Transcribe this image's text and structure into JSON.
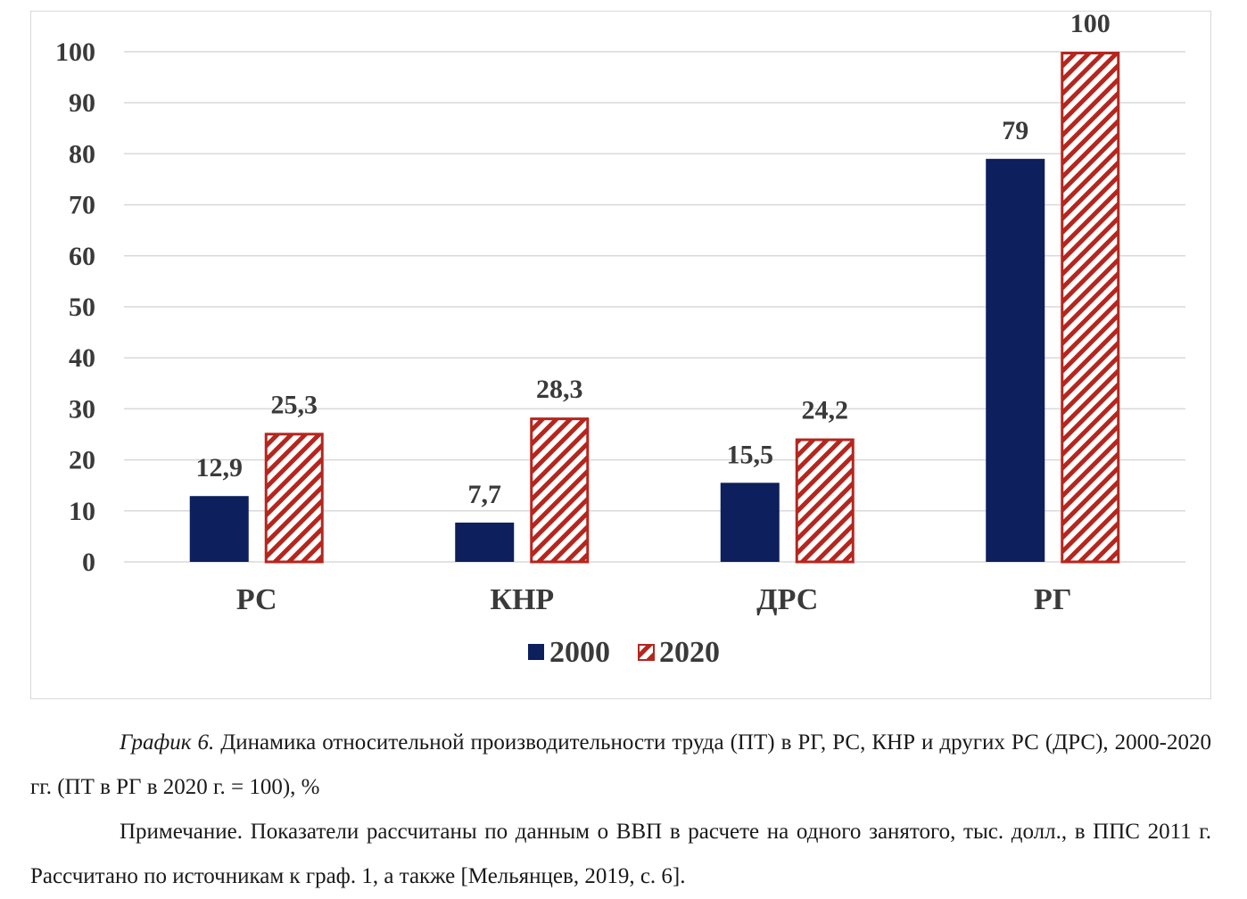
{
  "chart_data": {
    "type": "bar",
    "categories": [
      "РС",
      "КНР",
      "ДРС",
      "РГ"
    ],
    "series": [
      {
        "name": "2000",
        "values": [
          12.9,
          7.7,
          15.5,
          79
        ],
        "labels": [
          "12,9",
          "7,7",
          "15,5",
          "79"
        ]
      },
      {
        "name": "2020",
        "values": [
          25.3,
          28.3,
          24.2,
          100
        ],
        "labels": [
          "25,3",
          "28,3",
          "24,2",
          "100"
        ]
      }
    ],
    "ylim": [
      0,
      100
    ],
    "yticks": [
      0,
      10,
      20,
      30,
      40,
      50,
      60,
      70,
      80,
      90,
      100
    ],
    "grid": true,
    "legend": "bottom",
    "colors": {
      "s2000": "#0d1f5c",
      "s2020": "#b5261e"
    }
  },
  "caption": {
    "title_italic": "График 6.",
    "title_text": " Динамика относительной производительности труда (ПТ) в РГ, РС, КНР и других РС (ДРС), 2000-2020 гг. (ПТ в РГ в 2020 г. = 100), %",
    "note": "Примечание. Показатели рассчитаны по данным о ВВП в расчете на одного занятого, тыс. долл., в ППС 2011 г. Рассчитано по источникам к граф. 1, а также [Мельянцев, 2019, с. 6]."
  }
}
